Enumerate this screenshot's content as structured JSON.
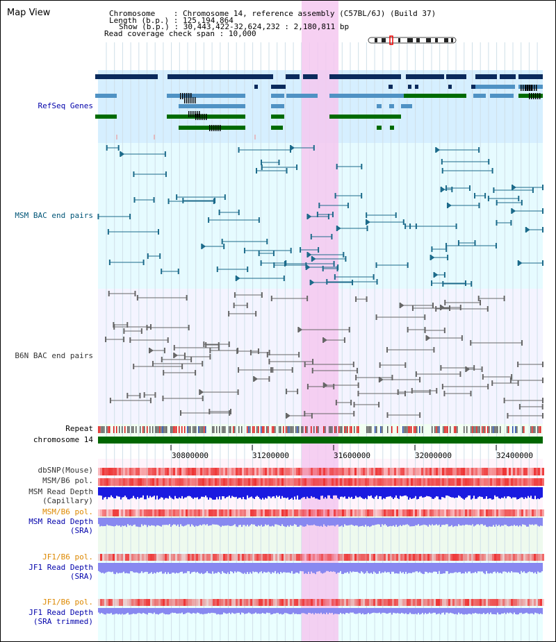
{
  "page": {
    "title": "Map View",
    "info": {
      "chromosome_key": "Chromosome",
      "chromosome_value": "Chromosome 14, reference assembly (C57BL/6J) (Build 37)",
      "length_key": "Length (b.p.)",
      "length_value": "125,194,864",
      "show_key": "Show (b.p.)",
      "show_value": "30,443,422-32,624,232 : 2,180,811 bp",
      "coverage_key": "Read coverage check span",
      "coverage_value": "10,000"
    }
  },
  "axis": {
    "ticks": [
      "30800000",
      "31200000",
      "31600000",
      "32000000",
      "32400000"
    ]
  },
  "tracks": {
    "refseq": {
      "label": "RefSeq Genes",
      "color": "#0000aa"
    },
    "msm_bac": {
      "label": "MSM BAC end pairs",
      "color": "#005577"
    },
    "b6n_bac": {
      "label": "B6N BAC end pairs",
      "color": "#333333"
    },
    "repeat": {
      "label": "Repeat",
      "color": "#000000"
    },
    "chromosome": {
      "label": "chromosome 14",
      "color": "#000000"
    },
    "dbsnp": {
      "label": "dbSNP(Mouse)",
      "color": "#333333"
    },
    "msm_b6_pol_1": {
      "label": "MSM/B6 pol.",
      "color": "#333333"
    },
    "msm_depth_cap": {
      "label_line1": "MSM Read Depth",
      "label_line2": "(Capillary)",
      "color": "#333333"
    },
    "msm_b6_pol_2": {
      "label": "MSM/B6 pol.",
      "color": "#dd8800"
    },
    "msm_depth_sra": {
      "label_line1": "MSM Read Depth",
      "label_line2": "(SRA)",
      "color": "#0000aa"
    },
    "jf1_b6_pol_1": {
      "label": "JF1/B6 pol.",
      "color": "#dd8800"
    },
    "jf1_depth_sra": {
      "label_line1": "JF1 Read Depth",
      "label_line2": "(SRA)",
      "color": "#0000aa"
    },
    "jf1_b6_pol_2": {
      "label": "JF1/B6 pol.",
      "color": "#dd8800"
    },
    "jf1_depth_trim": {
      "label_line1": "JF1 Read Depth",
      "label_line2": "(SRA trimmed)",
      "color": "#0000aa"
    }
  },
  "colors": {
    "highlight": "#f5c8f0",
    "refseq_bg": "#d6efff",
    "msm_bg": "#e6fbff",
    "b6n_bg": "#f4f4ff",
    "dark_navy": "#0a2a5c",
    "refseq_light": "#4f92c4",
    "refseq_green": "#006b00",
    "chromosome_green": "#006600",
    "depth_blue": "#1a1ae0",
    "depth_light_blue": "#8888f0",
    "pol_red": "#ee3333"
  }
}
